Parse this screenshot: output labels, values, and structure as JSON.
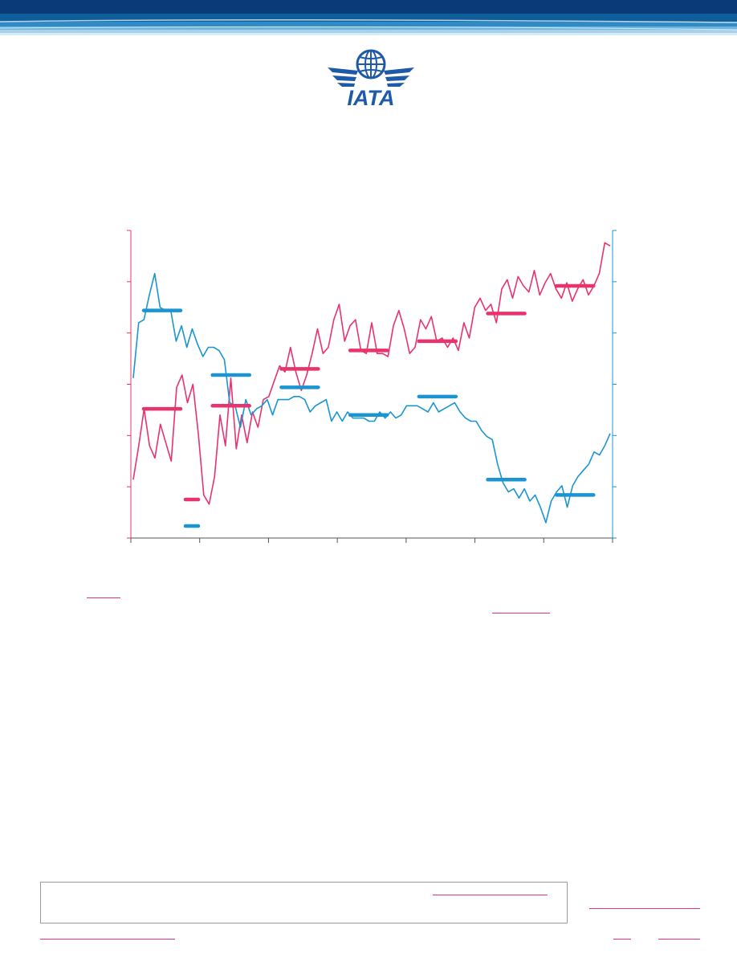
{
  "colors": {
    "pink": "#e8336d",
    "blue": "#1a95d2",
    "navy": "#0a3b78",
    "link": "#e8336d"
  },
  "logo": {
    "text": "IATA"
  },
  "chart_data": {
    "type": "line",
    "title": "",
    "xlabel": "",
    "ylabel": "",
    "series": [
      {
        "values": [
          0.19,
          0.3,
          0.42,
          0.3,
          0.26,
          0.37,
          0.31,
          0.25,
          0.49,
          0.53,
          0.44,
          0.5,
          0.34,
          0.14,
          0.11,
          0.2,
          0.4,
          0.3,
          0.52,
          0.29,
          0.4,
          0.31,
          0.41,
          0.36,
          0.45,
          0.46,
          0.51,
          0.56,
          0.54,
          0.62,
          0.54,
          0.48,
          0.53,
          0.6,
          0.68,
          0.6,
          0.62,
          0.71,
          0.76,
          0.64,
          0.69,
          0.71,
          0.61,
          0.6,
          0.7,
          0.6,
          0.6,
          0.59,
          0.69,
          0.74,
          0.68,
          0.6,
          0.62,
          0.71,
          0.68,
          0.72,
          0.64,
          0.65,
          0.62,
          0.65,
          0.61,
          0.7,
          0.65,
          0.75,
          0.78,
          0.74,
          0.76,
          0.7,
          0.81,
          0.84,
          0.78,
          0.85,
          0.82,
          0.8,
          0.87,
          0.79,
          0.83,
          0.86,
          0.81,
          0.78,
          0.83,
          0.77,
          0.81,
          0.84,
          0.79,
          0.82,
          0.86,
          0.96,
          0.95
        ]
      },
      {
        "values": [
          0.52,
          0.7,
          0.71,
          0.79,
          0.86,
          0.75,
          0.74,
          0.74,
          0.64,
          0.69,
          0.62,
          0.68,
          0.63,
          0.59,
          0.62,
          0.62,
          0.61,
          0.58,
          0.44,
          0.43,
          0.36,
          0.45,
          0.4,
          0.42,
          0.43,
          0.45,
          0.4,
          0.45,
          0.45,
          0.45,
          0.46,
          0.46,
          0.45,
          0.41,
          0.43,
          0.44,
          0.45,
          0.38,
          0.41,
          0.38,
          0.41,
          0.39,
          0.39,
          0.39,
          0.38,
          0.38,
          0.41,
          0.39,
          0.41,
          0.39,
          0.4,
          0.43,
          0.43,
          0.43,
          0.42,
          0.41,
          0.44,
          0.41,
          0.42,
          0.43,
          0.44,
          0.41,
          0.39,
          0.38,
          0.38,
          0.35,
          0.33,
          0.32,
          0.24,
          0.18,
          0.15,
          0.16,
          0.13,
          0.16,
          0.12,
          0.14,
          0.1,
          0.05,
          0.12,
          0.15,
          0.17,
          0.1,
          0.17,
          0.2,
          0.22,
          0.24,
          0.28,
          0.27,
          0.3,
          0.34
        ]
      }
    ],
    "averages": [
      [
        0.42,
        0.43,
        0.55,
        0.61,
        0.64,
        0.73,
        0.82
      ],
      [
        0.74,
        0.53,
        0.49,
        0.4,
        0.46,
        0.19,
        0.14
      ]
    ]
  }
}
